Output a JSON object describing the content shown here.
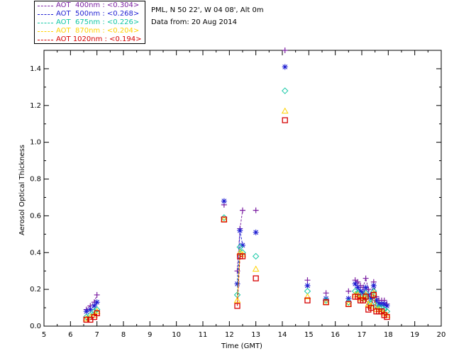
{
  "info": {
    "location": "PML, N 50 22', W 04 08', Alt 0m",
    "date_line": "Data from: 20 Aug 2014"
  },
  "legend": [
    {
      "label": "AOT  400nm : <0.304>",
      "color": "#7b1fa2"
    },
    {
      "label": "AOT  500nm : <0.268>",
      "color": "#1f1fd2"
    },
    {
      "label": "AOT  675nm : <0.226>",
      "color": "#11c7a4"
    },
    {
      "label": "AOT  870nm : <0.204>",
      "color": "#ffd200"
    },
    {
      "label": "AOT 1020nm : <0.194>",
      "color": "#d60000"
    }
  ],
  "chart_data": {
    "type": "scatter",
    "xlabel": "Time (GMT)",
    "ylabel": "Aerosol Optical Thickness",
    "xlim": [
      5,
      20
    ],
    "ylim": [
      0,
      1.5
    ],
    "xticks": [
      "5",
      "6",
      "7",
      "8",
      "9",
      "10",
      "11",
      "12",
      "13",
      "14",
      "15",
      "16",
      "17",
      "18",
      "19",
      "20"
    ],
    "yticks": [
      "0.0",
      "0.2",
      "0.4",
      "0.6",
      "0.8",
      "1.0",
      "1.2",
      "1.4"
    ],
    "series": [
      {
        "name": "AOT  400nm : <0.304>",
        "color": "#7b1fa2",
        "marker": "plus",
        "x": [
          6.6,
          6.75,
          6.9,
          7.0,
          11.8,
          12.3,
          12.4,
          12.5,
          13.0,
          14.1,
          14.95,
          15.65,
          16.5,
          16.75,
          16.85,
          16.95,
          17.05,
          17.15,
          17.25,
          17.35,
          17.45,
          17.55,
          17.65,
          17.75,
          17.85,
          17.95
        ],
        "y": [
          0.09,
          0.11,
          0.13,
          0.17,
          0.66,
          0.3,
          0.53,
          0.63,
          0.63,
          1.5,
          0.25,
          0.18,
          0.19,
          0.25,
          0.24,
          0.22,
          0.21,
          0.26,
          0.2,
          0.17,
          0.24,
          0.16,
          0.14,
          0.14,
          0.14,
          0.12
        ]
      },
      {
        "name": "AOT  500nm : <0.268>",
        "color": "#1f1fd2",
        "marker": "asterisk",
        "x": [
          6.6,
          6.75,
          6.9,
          7.0,
          11.8,
          12.3,
          12.4,
          12.5,
          13.0,
          14.1,
          14.95,
          15.65,
          16.5,
          16.75,
          16.85,
          16.95,
          17.05,
          17.15,
          17.25,
          17.35,
          17.45,
          17.55,
          17.65,
          17.75,
          17.85,
          17.95
        ],
        "y": [
          0.08,
          0.09,
          0.11,
          0.13,
          0.68,
          0.23,
          0.52,
          0.44,
          0.51,
          1.41,
          0.22,
          0.15,
          0.15,
          0.23,
          0.21,
          0.19,
          0.18,
          0.21,
          0.17,
          0.15,
          0.22,
          0.14,
          0.12,
          0.12,
          0.12,
          0.11
        ]
      },
      {
        "name": "AOT  675nm : <0.226>",
        "color": "#11c7a4",
        "marker": "diamond",
        "x": [
          6.6,
          6.75,
          6.9,
          7.0,
          11.8,
          12.3,
          12.4,
          12.5,
          13.0,
          14.1,
          14.95,
          15.65,
          16.5,
          16.75,
          16.85,
          16.95,
          17.05,
          17.15,
          17.25,
          17.35,
          17.45,
          17.55,
          17.65,
          17.75,
          17.85,
          17.95
        ],
        "y": [
          0.05,
          0.06,
          0.08,
          0.09,
          0.59,
          0.17,
          0.43,
          0.4,
          0.38,
          1.28,
          0.19,
          0.14,
          0.13,
          0.19,
          0.18,
          0.16,
          0.15,
          0.18,
          0.14,
          0.12,
          0.19,
          0.11,
          0.1,
          0.1,
          0.09,
          0.08
        ]
      },
      {
        "name": "AOT  870nm : <0.204>",
        "color": "#ffd200",
        "marker": "triangle",
        "x": [
          6.6,
          6.75,
          6.9,
          7.0,
          11.8,
          12.3,
          12.4,
          12.5,
          13.0,
          14.1,
          14.95,
          15.65,
          16.5,
          16.75,
          16.85,
          16.95,
          17.05,
          17.15,
          17.25,
          17.35,
          17.45,
          17.55,
          17.65,
          17.75,
          17.85,
          17.95
        ],
        "y": [
          0.04,
          0.05,
          0.06,
          0.08,
          0.58,
          0.14,
          0.4,
          0.39,
          0.31,
          1.17,
          0.16,
          0.13,
          0.12,
          0.17,
          0.17,
          0.15,
          0.15,
          0.17,
          0.12,
          0.11,
          0.18,
          0.09,
          0.09,
          0.08,
          0.07,
          0.06
        ]
      },
      {
        "name": "AOT 1020nm : <0.194>",
        "color": "#d60000",
        "marker": "square",
        "x": [
          6.6,
          6.75,
          6.9,
          7.0,
          11.8,
          12.3,
          12.4,
          12.5,
          13.0,
          14.1,
          14.95,
          15.65,
          16.5,
          16.75,
          16.85,
          16.95,
          17.05,
          17.15,
          17.25,
          17.35,
          17.45,
          17.55,
          17.65,
          17.75,
          17.85,
          17.95
        ],
        "y": [
          0.035,
          0.035,
          0.05,
          0.07,
          0.58,
          0.11,
          0.38,
          0.38,
          0.26,
          1.12,
          0.14,
          0.13,
          0.12,
          0.16,
          0.16,
          0.14,
          0.14,
          0.16,
          0.09,
          0.1,
          0.17,
          0.08,
          0.08,
          0.08,
          0.06,
          0.05
        ]
      }
    ],
    "grid": false,
    "legend_position": "top-left"
  }
}
